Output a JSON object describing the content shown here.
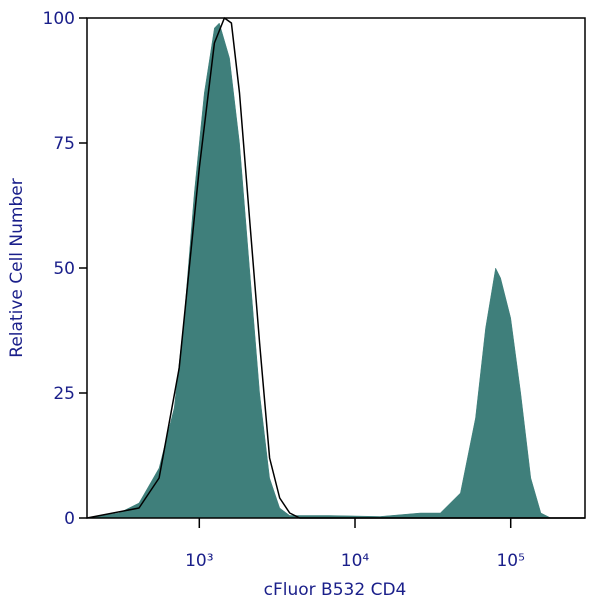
{
  "chart_data": {
    "type": "area",
    "xlabel": "cFluor B532 CD4",
    "ylabel": "Relative Cell Number",
    "xscale": "log",
    "xlim": [
      190,
      300000
    ],
    "xticks": [
      {
        "value": 1000,
        "label": "10³"
      },
      {
        "value": 10000,
        "label": "10⁴"
      },
      {
        "value": 100000,
        "label": "10⁵"
      }
    ],
    "ylim": [
      0,
      100
    ],
    "yticks": [
      0,
      25,
      50,
      75,
      100
    ],
    "series": [
      {
        "style": "filled",
        "color": "#3f7f7b",
        "x": [
          190,
          305,
          410,
          552,
          690,
          800,
          929,
          1077,
          1250,
          1345,
          1563,
          1812,
          2102,
          2438,
          2830,
          3282,
          3808,
          6900,
          14500,
          26250,
          35300,
          47500,
          59400,
          69000,
          80000,
          86100,
          100000,
          116000,
          134600,
          156300,
          181200,
          300000
        ],
        "values": [
          0,
          1,
          3,
          10,
          22,
          40,
          65,
          85,
          98,
          99,
          92,
          75,
          50,
          25,
          8,
          2,
          0.5,
          0.5,
          0.3,
          1,
          1,
          5,
          20,
          38,
          50,
          48,
          40,
          25,
          8,
          1,
          0,
          0
        ]
      },
      {
        "style": "outline",
        "color": "#000000",
        "x": [
          190,
          410,
          552,
          743,
          1000,
          1250,
          1450,
          1607,
          1812,
          2102,
          2438,
          2830,
          3282,
          3808,
          4415,
          300000
        ],
        "values": [
          0,
          2,
          8,
          30,
          70,
          95,
          100,
          99,
          85,
          60,
          35,
          12,
          4,
          1,
          0,
          0
        ]
      }
    ]
  }
}
